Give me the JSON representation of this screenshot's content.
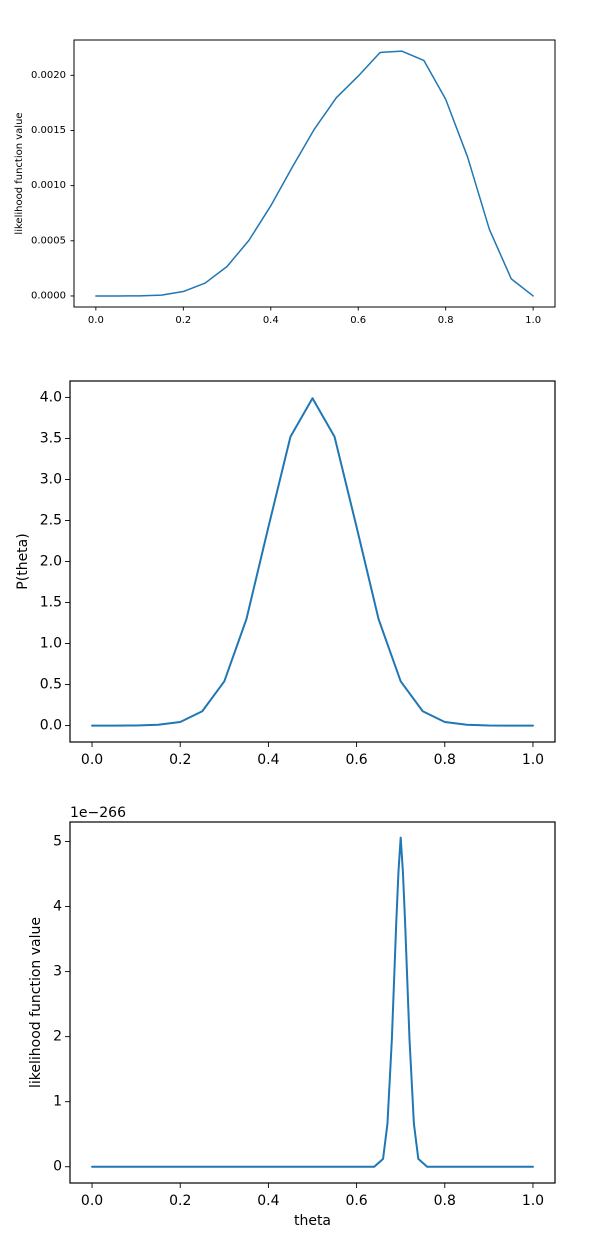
{
  "chart_data": [
    {
      "type": "line",
      "title": "",
      "xlabel": "",
      "ylabel": "likelihood function value",
      "xlim": [
        -0.05,
        1.05
      ],
      "ylim": [
        -0.0001,
        0.00232
      ],
      "xticks": [
        0.0,
        0.2,
        0.4,
        0.6,
        0.8,
        1.0
      ],
      "xtick_labels": [
        "0.0",
        "0.2",
        "0.4",
        "0.6",
        "0.8",
        "1.0"
      ],
      "yticks": [
        0.0,
        0.0005,
        0.001,
        0.0015,
        0.002
      ],
      "ytick_labels": [
        "0.0000",
        "0.0005",
        "0.0010",
        "0.0015",
        "0.0020"
      ],
      "offset_text": "",
      "grid": false,
      "color": "#1f77b4",
      "series": [
        {
          "x": [
            0.0,
            0.05,
            0.1,
            0.15,
            0.2,
            0.25,
            0.3,
            0.35,
            0.4,
            0.45,
            0.5,
            0.55,
            0.6,
            0.65,
            0.7,
            0.75,
            0.8,
            0.85,
            0.9,
            0.95,
            1.0
          ],
          "values": [
            0.0,
            0.0,
            1e-06,
            8e-06,
            4e-05,
            0.000117,
            0.000267,
            0.000504,
            0.000817,
            0.001173,
            0.001514,
            0.001797,
            0.001993,
            0.002207,
            0.002219,
            0.002135,
            0.001783,
            0.00126,
            0.000603,
            0.000155,
            0.0
          ]
        }
      ]
    },
    {
      "type": "line",
      "title": "",
      "xlabel": "",
      "ylabel": "P(theta)",
      "xlim": [
        -0.05,
        1.05
      ],
      "ylim": [
        -0.2,
        4.2
      ],
      "xticks": [
        0.0,
        0.2,
        0.4,
        0.6,
        0.8,
        1.0
      ],
      "xtick_labels": [
        "0.0",
        "0.2",
        "0.4",
        "0.6",
        "0.8",
        "1.0"
      ],
      "yticks": [
        0.0,
        0.5,
        1.0,
        1.5,
        2.0,
        2.5,
        3.0,
        3.5,
        4.0
      ],
      "ytick_labels": [
        "0.0",
        "0.5",
        "1.0",
        "1.5",
        "2.0",
        "2.5",
        "3.0",
        "3.5",
        "4.0"
      ],
      "offset_text": "",
      "grid": false,
      "color": "#1f77b4",
      "series": [
        {
          "x": [
            0.0,
            0.05,
            0.1,
            0.15,
            0.2,
            0.25,
            0.3,
            0.35,
            0.4,
            0.45,
            0.5,
            0.55,
            0.6,
            0.65,
            0.7,
            0.75,
            0.8,
            0.85,
            0.9,
            0.95,
            1.0
          ],
          "values": [
            0.0,
            0.0,
            0.001,
            0.01,
            0.044,
            0.175,
            0.54,
            1.295,
            2.42,
            3.52,
            3.99,
            3.52,
            2.42,
            1.295,
            0.54,
            0.175,
            0.044,
            0.01,
            0.001,
            0.0,
            0.0
          ]
        }
      ]
    },
    {
      "type": "line",
      "title": "",
      "xlabel": "theta",
      "ylabel": "likelihood function value",
      "xlim": [
        -0.05,
        1.05
      ],
      "ylim": [
        -0.25,
        5.3
      ],
      "xticks": [
        0.0,
        0.2,
        0.4,
        0.6,
        0.8,
        1.0
      ],
      "xtick_labels": [
        "0.0",
        "0.2",
        "0.4",
        "0.6",
        "0.8",
        "1.0"
      ],
      "yticks": [
        0,
        1,
        2,
        3,
        4,
        5
      ],
      "ytick_labels": [
        "0",
        "1",
        "2",
        "3",
        "4",
        "5"
      ],
      "offset_text": "1e−266",
      "grid": false,
      "color": "#1f77b4",
      "series": [
        {
          "x": [
            0.0,
            0.6,
            0.64,
            0.66,
            0.67,
            0.68,
            0.69,
            0.695,
            0.7,
            0.705,
            0.71,
            0.72,
            0.73,
            0.74,
            0.76,
            0.8,
            1.0
          ],
          "values": [
            0.0,
            0.0,
            0.0,
            0.12,
            0.66,
            1.96,
            3.76,
            4.54,
            5.06,
            4.54,
            3.76,
            1.96,
            0.66,
            0.12,
            0.0,
            0.0,
            0.0
          ]
        }
      ]
    }
  ]
}
